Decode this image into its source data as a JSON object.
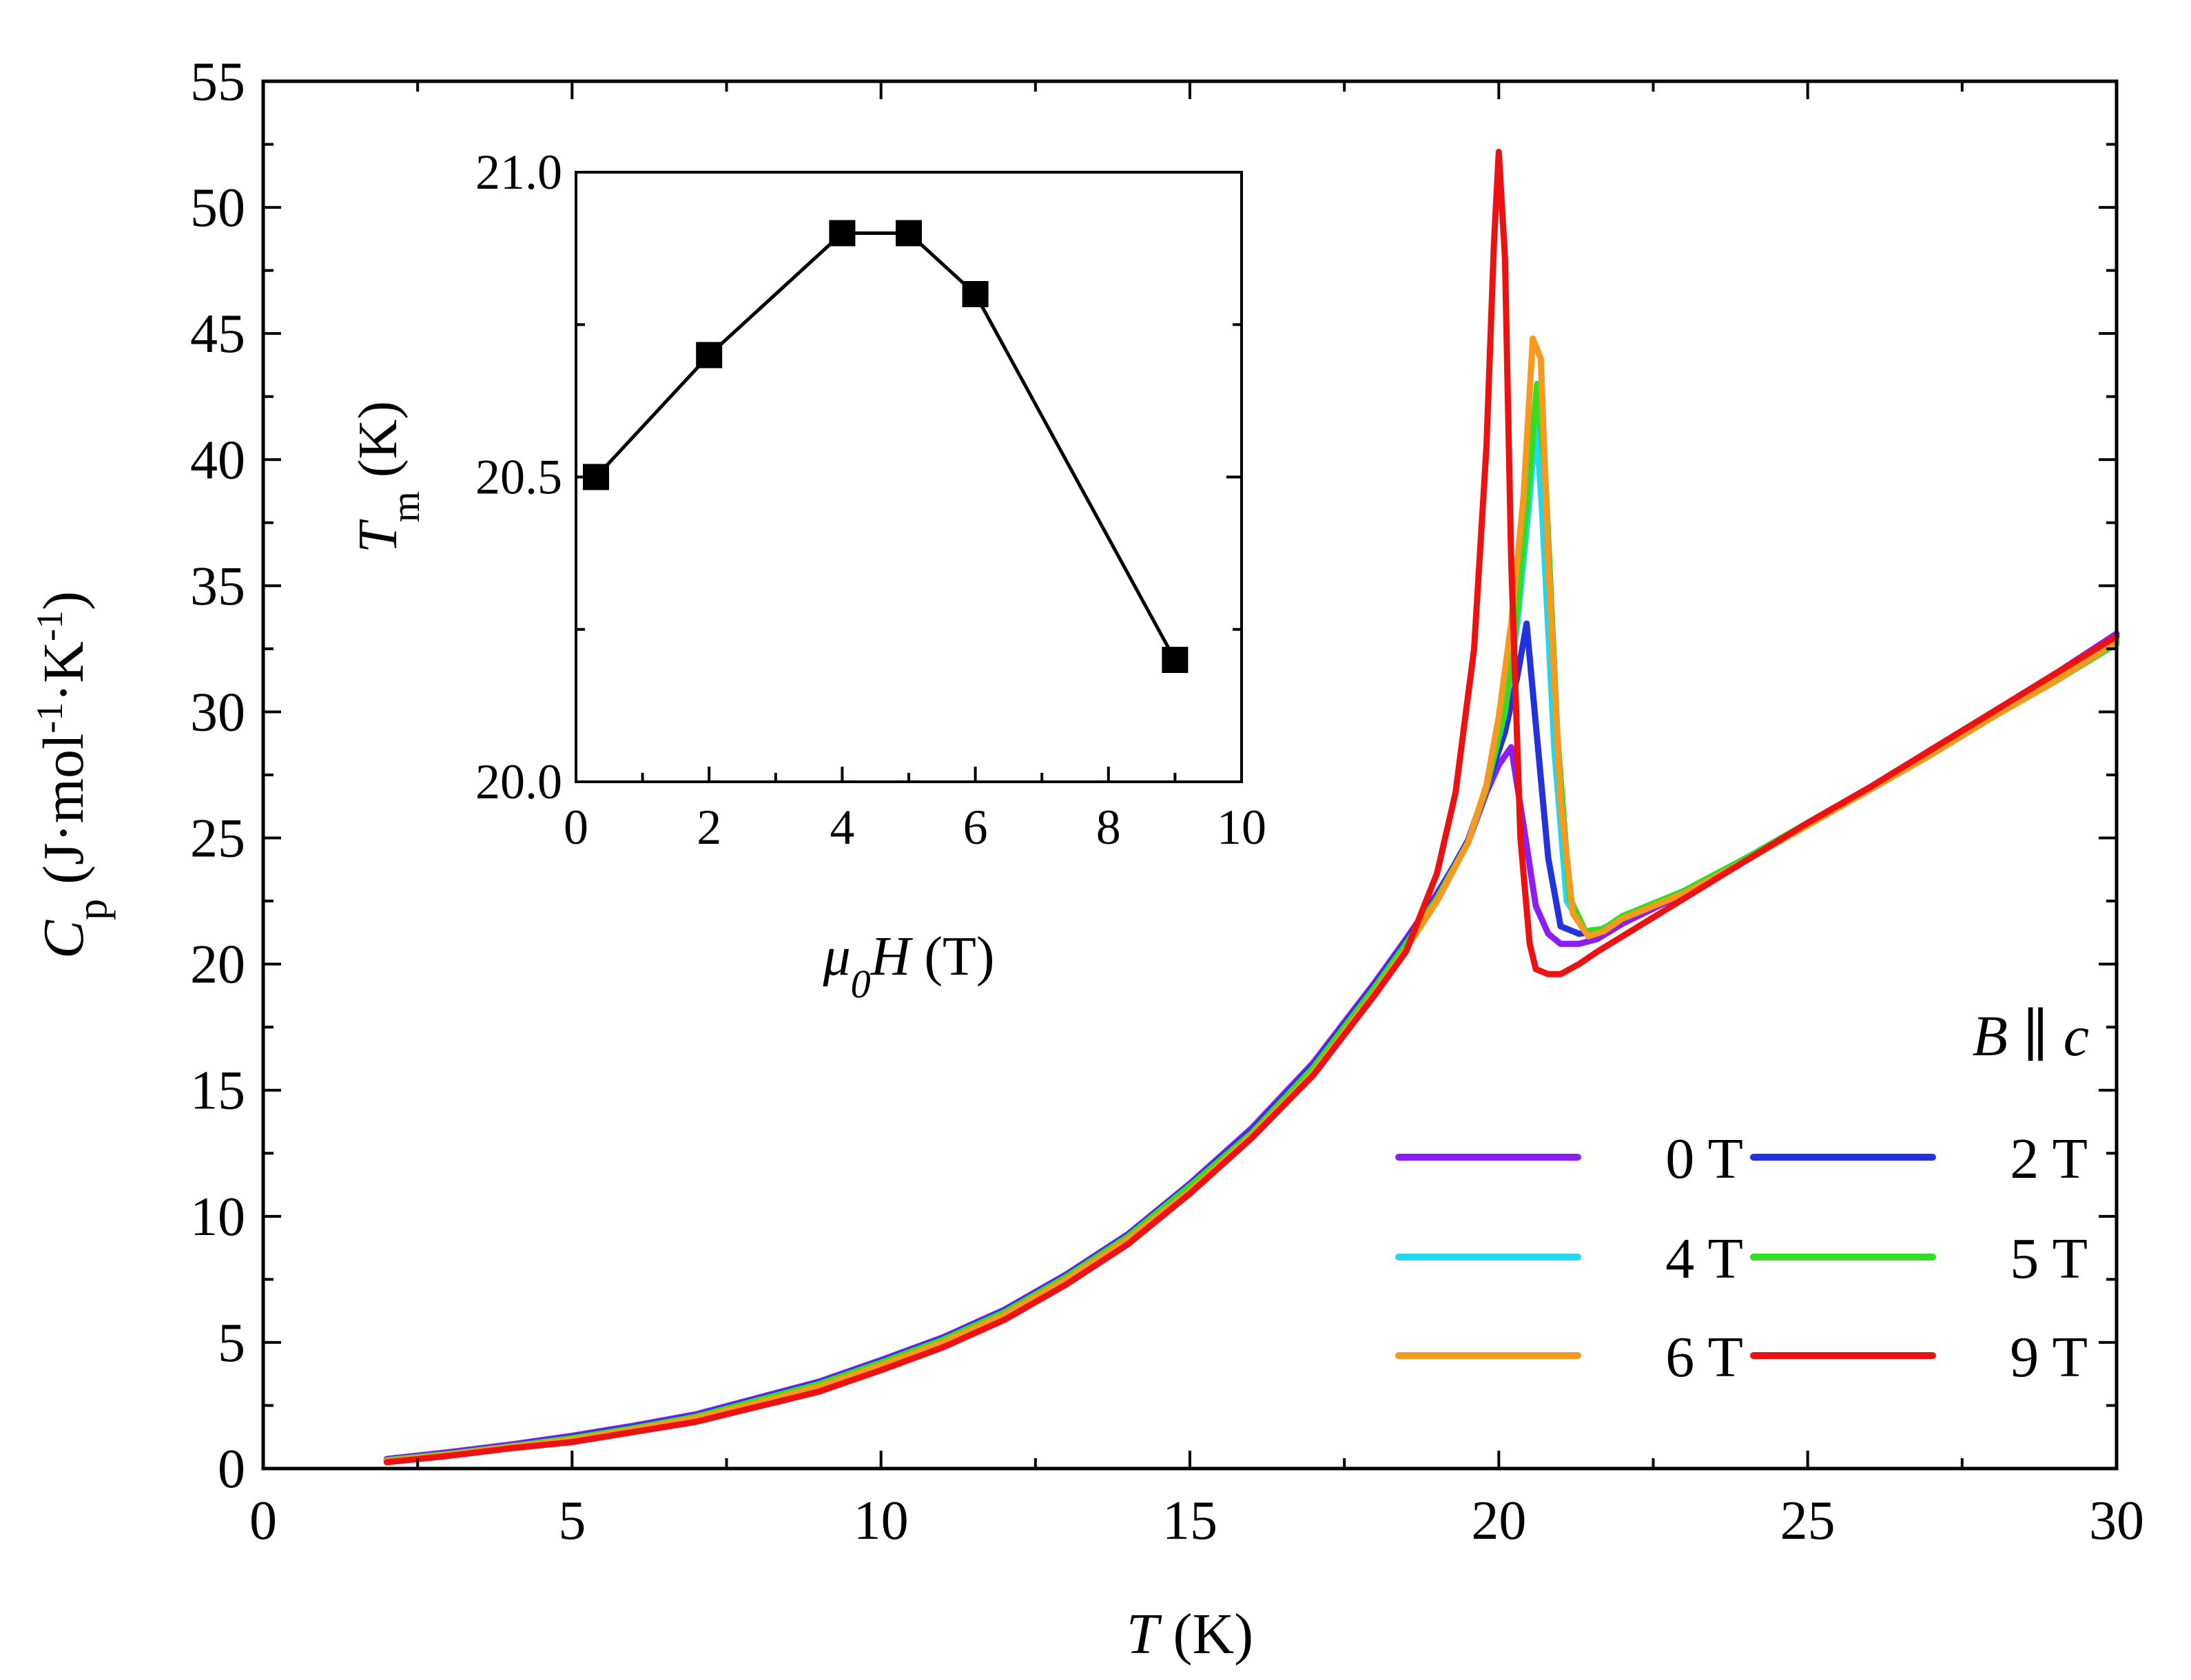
{
  "chart_data": [
    {
      "type": "line",
      "role": "main",
      "title": "",
      "xlabel": {
        "var": "T",
        "unit": " (K)"
      },
      "ylabel": {
        "var": "C",
        "sub": "p",
        "unit": " (J·mol",
        "sup1": "-1",
        "mid": "·K",
        "sup2": "-1",
        "end": ")"
      },
      "xlim": [
        0,
        30
      ],
      "ylim": [
        0,
        55
      ],
      "xticks": [
        0,
        5,
        10,
        15,
        20,
        25,
        30
      ],
      "yticks": [
        0,
        5,
        10,
        15,
        20,
        25,
        30,
        35,
        40,
        45,
        50,
        55
      ],
      "annotation": {
        "var1": "B",
        "sym": " ∥ ",
        "var2": "c"
      },
      "series": [
        {
          "name": "0 T",
          "color": "#8B1EF0",
          "x": [
            2.0,
            3,
            4,
            5,
            6,
            7,
            8,
            9,
            10,
            11,
            12,
            13,
            14,
            15,
            16,
            17,
            18,
            18.5,
            19,
            19.5,
            19.8,
            20.0,
            20.2,
            20.4,
            20.6,
            20.8,
            21.0,
            21.3,
            21.6,
            22,
            23,
            24,
            25,
            26,
            27,
            28,
            29,
            30
          ],
          "y": [
            0.38,
            0.65,
            0.95,
            1.3,
            1.7,
            2.15,
            2.8,
            3.45,
            4.3,
            5.2,
            6.3,
            7.7,
            9.3,
            11.3,
            13.5,
            16.1,
            19.3,
            21.0,
            22.8,
            24.8,
            26.8,
            27.9,
            28.6,
            25.5,
            22.3,
            21.2,
            20.8,
            20.8,
            21.0,
            21.6,
            22.8,
            24.1,
            25.6,
            27.0,
            28.5,
            30.0,
            31.5,
            33.1
          ]
        },
        {
          "name": "2 T",
          "color": "#2233DD",
          "x": [
            2.0,
            3,
            4,
            5,
            6,
            7,
            8,
            9,
            10,
            11,
            12,
            13,
            14,
            15,
            16,
            17,
            18,
            18.5,
            19,
            19.5,
            19.8,
            20.1,
            20.3,
            20.45,
            20.6,
            20.8,
            21.0,
            21.3,
            21.6,
            22,
            23,
            24,
            25,
            26,
            27,
            28,
            29,
            30
          ],
          "y": [
            0.35,
            0.6,
            0.9,
            1.25,
            1.65,
            2.1,
            2.75,
            3.4,
            4.25,
            5.15,
            6.25,
            7.65,
            9.25,
            11.25,
            13.4,
            16.0,
            19.2,
            20.9,
            22.7,
            24.9,
            27.0,
            29.2,
            31.4,
            33.5,
            29.5,
            24.2,
            21.5,
            21.2,
            21.3,
            21.8,
            22.9,
            24.2,
            25.6,
            27.0,
            28.5,
            30.0,
            31.5,
            32.8
          ]
        },
        {
          "name": "4 T",
          "color": "#22D8EE",
          "x": [
            2.0,
            3,
            4,
            5,
            6,
            7,
            8,
            9,
            10,
            11,
            12,
            13,
            14,
            15,
            16,
            17,
            18,
            18.5,
            19,
            19.5,
            19.8,
            20.1,
            20.3,
            20.5,
            20.6,
            20.7,
            20.9,
            21.1,
            21.4,
            21.7,
            22,
            23,
            24,
            25,
            26,
            27,
            28,
            29,
            30
          ],
          "y": [
            0.33,
            0.58,
            0.88,
            1.2,
            1.6,
            2.05,
            2.7,
            3.35,
            4.2,
            5.1,
            6.2,
            7.6,
            9.2,
            11.2,
            13.3,
            15.9,
            19.1,
            20.8,
            22.6,
            24.8,
            27.0,
            30.0,
            33.5,
            38.5,
            41.5,
            38.0,
            28.5,
            22.5,
            21.3,
            21.4,
            21.9,
            22.9,
            24.2,
            25.6,
            27.0,
            28.4,
            29.9,
            31.3,
            32.9
          ]
        },
        {
          "name": "5 T",
          "color": "#33DD22",
          "x": [
            2.0,
            3,
            4,
            5,
            6,
            7,
            8,
            9,
            10,
            11,
            12,
            13,
            14,
            15,
            16,
            17,
            18,
            18.5,
            19,
            19.5,
            19.8,
            20.1,
            20.3,
            20.5,
            20.62,
            20.75,
            20.95,
            21.15,
            21.4,
            21.7,
            22,
            23,
            24,
            25,
            26,
            27,
            28,
            29,
            30
          ],
          "y": [
            0.33,
            0.58,
            0.88,
            1.2,
            1.6,
            2.05,
            2.7,
            3.35,
            4.2,
            5.1,
            6.2,
            7.6,
            9.2,
            11.2,
            13.3,
            15.9,
            19.1,
            20.8,
            22.6,
            24.8,
            27.0,
            30.0,
            34.0,
            39.5,
            43.0,
            39.5,
            29.0,
            22.6,
            21.3,
            21.4,
            21.9,
            22.9,
            24.2,
            25.6,
            26.9,
            28.3,
            29.8,
            31.2,
            32.7
          ]
        },
        {
          "name": "6 T",
          "color": "#F59A1E",
          "x": [
            2.0,
            3,
            4,
            5,
            6,
            7,
            8,
            9,
            10,
            11,
            12,
            13,
            14,
            15,
            16,
            17,
            18,
            18.5,
            19,
            19.5,
            19.8,
            20.0,
            20.2,
            20.4,
            20.55,
            20.68,
            20.8,
            21.0,
            21.2,
            21.45,
            21.7,
            22,
            23,
            24,
            25,
            26,
            27,
            28,
            29,
            30
          ],
          "y": [
            0.3,
            0.55,
            0.85,
            1.15,
            1.55,
            2.0,
            2.6,
            3.25,
            4.1,
            5.0,
            6.1,
            7.5,
            9.1,
            11.0,
            13.2,
            15.7,
            18.9,
            20.6,
            22.5,
            24.8,
            27.1,
            29.8,
            33.5,
            38.5,
            44.8,
            44.0,
            36.0,
            26.5,
            22.0,
            21.1,
            21.3,
            21.8,
            22.8,
            24.1,
            25.5,
            26.9,
            28.3,
            29.8,
            31.2,
            32.8
          ]
        },
        {
          "name": "9 T",
          "color": "#EE1111",
          "x": [
            2.0,
            3,
            4,
            5,
            6,
            7,
            8,
            9,
            10,
            11,
            12,
            13,
            14,
            15,
            16,
            17,
            18,
            18.5,
            19,
            19.3,
            19.6,
            19.8,
            19.92,
            20.0,
            20.1,
            20.2,
            20.35,
            20.5,
            20.6,
            20.8,
            21.0,
            21.3,
            21.6,
            22,
            23,
            24,
            25,
            26,
            27,
            28,
            29,
            30
          ],
          "y": [
            0.25,
            0.5,
            0.8,
            1.05,
            1.45,
            1.85,
            2.45,
            3.05,
            3.9,
            4.8,
            5.9,
            7.3,
            8.9,
            10.9,
            13.1,
            15.6,
            18.8,
            20.5,
            23.6,
            26.8,
            32.5,
            40.5,
            48.5,
            52.2,
            48.0,
            36.0,
            25.0,
            20.8,
            19.8,
            19.6,
            19.6,
            20.0,
            20.5,
            21.1,
            22.6,
            24.1,
            25.6,
            27.0,
            28.5,
            30.0,
            31.5,
            33.0
          ]
        }
      ]
    },
    {
      "type": "line",
      "role": "inset",
      "xlabel": {
        "var": "μ",
        "sub": "0",
        "var2": "H",
        "unit": " (T)"
      },
      "ylabel": {
        "var": "T",
        "sub": "m",
        "unit": " (K)"
      },
      "xlim": [
        0,
        10
      ],
      "ylim": [
        20.0,
        21.0
      ],
      "xticks": [
        0,
        2,
        4,
        6,
        8,
        10
      ],
      "yticks": [
        "20.0",
        "20.5",
        "21.0"
      ],
      "x": [
        0.3,
        2,
        4,
        5,
        6,
        9
      ],
      "y": [
        20.5,
        20.7,
        20.9,
        20.9,
        20.8,
        20.2
      ]
    }
  ]
}
